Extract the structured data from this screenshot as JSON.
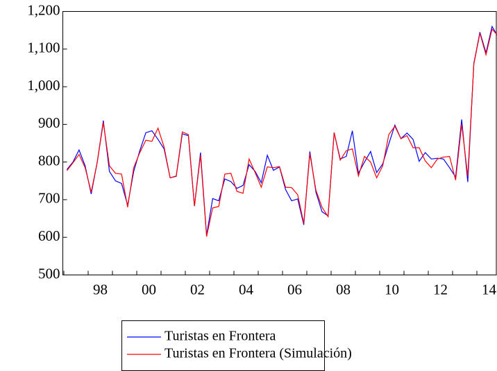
{
  "chart_data": {
    "type": "line",
    "categories": [
      null,
      null,
      null,
      null,
      null,
      "98",
      null,
      null,
      null,
      null,
      null,
      null,
      null,
      "00",
      null,
      null,
      null,
      null,
      null,
      null,
      null,
      "02",
      null,
      null,
      null,
      null,
      null,
      null,
      null,
      "04",
      null,
      null,
      null,
      null,
      null,
      null,
      null,
      "06",
      null,
      null,
      null,
      null,
      null,
      null,
      null,
      "08",
      null,
      null,
      null,
      null,
      null,
      null,
      null,
      "10",
      null,
      null,
      null,
      null,
      null,
      null,
      null,
      "12",
      null,
      null,
      null,
      null,
      null,
      null,
      null,
      "14",
      null,
      null
    ],
    "series": [
      {
        "name": "Turistas en Frontera",
        "color": "#0000ff",
        "values": [
          780,
          800,
          832,
          790,
          715,
          800,
          910,
          775,
          750,
          743,
          685,
          775,
          830,
          878,
          883,
          860,
          835,
          758,
          762,
          875,
          870,
          683,
          825,
          605,
          703,
          697,
          755,
          748,
          730,
          738,
          793,
          775,
          745,
          818,
          778,
          787,
          727,
          697,
          702,
          633,
          828,
          720,
          668,
          657,
          878,
          808,
          815,
          883,
          770,
          800,
          828,
          772,
          795,
          848,
          898,
          862,
          877,
          860,
          802,
          825,
          808,
          810,
          808,
          785,
          760,
          913,
          747,
          1062,
          1145,
          1090,
          1160,
          1133
        ]
      },
      {
        "name": "Turistas en Frontera (Simulación)",
        "color": "#ff0000",
        "values": [
          777,
          798,
          820,
          785,
          720,
          800,
          905,
          790,
          770,
          768,
          680,
          785,
          825,
          858,
          855,
          890,
          840,
          758,
          763,
          880,
          873,
          683,
          818,
          602,
          678,
          682,
          768,
          770,
          722,
          717,
          808,
          772,
          733,
          787,
          785,
          788,
          733,
          732,
          713,
          637,
          822,
          725,
          680,
          655,
          878,
          805,
          830,
          835,
          763,
          815,
          800,
          758,
          790,
          873,
          895,
          862,
          870,
          838,
          838,
          803,
          785,
          808,
          813,
          815,
          752,
          900,
          762,
          1060,
          1142,
          1085,
          1153,
          1135
        ]
      }
    ],
    "ylim": [
      500,
      1200
    ],
    "yticks": [
      500,
      600,
      700,
      800,
      900,
      {
        "value": 1000,
        "label": "1,000"
      },
      {
        "value": 1100,
        "label": "1,100"
      },
      {
        "value": 1200,
        "label": "1,200"
      }
    ],
    "grid": false,
    "legend": "bottom"
  }
}
